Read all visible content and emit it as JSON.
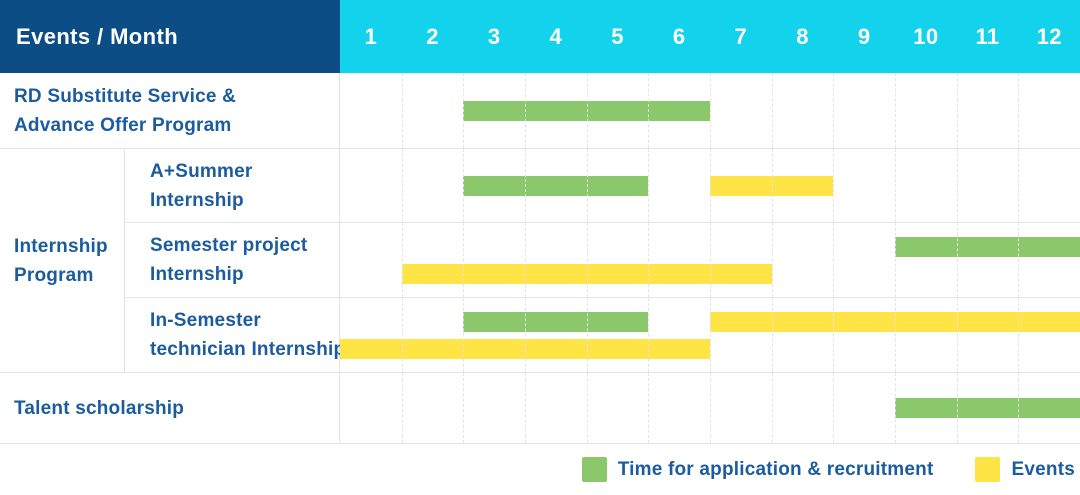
{
  "header": {
    "label": "Events / Month"
  },
  "colors": {
    "header_bg": "#0d4d85",
    "months_bg": "#12d2ec",
    "text_blue": "#1b5c9e",
    "green": "#8bc76b",
    "yellow": "#ffe445",
    "grid_line": "#e3e3e3"
  },
  "group": {
    "label_lines": [
      "Internship",
      "Program"
    ]
  },
  "chart_data": {
    "type": "bar",
    "subtype": "gantt-timeline",
    "title": "Events / Month",
    "x_label": "Month",
    "x_ticks": [
      "1",
      "2",
      "3",
      "4",
      "5",
      "6",
      "7",
      "8",
      "9",
      "10",
      "11",
      "12"
    ],
    "bar_scale_note": "A bar spans from the start of month 'from' to the start of month 'to'; months covered = from .. to-1.",
    "legend": [
      {
        "color": "green",
        "label": "Time for application & recruitment"
      },
      {
        "color": "yellow",
        "label": "Events"
      }
    ],
    "tasks": [
      {
        "name": "RD Substitute Service & Advance Offer Program",
        "group": null,
        "label_lines": [
          "RD Substitute Service &",
          "Advance Offer Program"
        ],
        "tracks": [
          [
            {
              "color": "green",
              "from": 3,
              "to": 7,
              "months_covered": "3-6"
            }
          ]
        ]
      },
      {
        "name": "A+Summer Internship",
        "group": "Internship Program",
        "label_lines": [
          "A+Summer",
          "Internship"
        ],
        "tracks": [
          [
            {
              "color": "green",
              "from": 3,
              "to": 6,
              "months_covered": "3-5"
            },
            {
              "color": "yellow",
              "from": 7,
              "to": 9,
              "months_covered": "7-8"
            }
          ]
        ]
      },
      {
        "name": "Semester project Internship",
        "group": "Internship Program",
        "label_lines": [
          "Semester project",
          "Internship"
        ],
        "tracks": [
          [
            {
              "color": "green",
              "from": 10,
              "to": 13,
              "months_covered": "10-12"
            }
          ],
          [
            {
              "color": "yellow",
              "from": 2,
              "to": 8,
              "months_covered": "2-7"
            }
          ]
        ]
      },
      {
        "name": "In-Semester technician Internship",
        "group": "Internship Program",
        "label_lines": [
          "In-Semester",
          "technician Internship"
        ],
        "tracks": [
          [
            {
              "color": "green",
              "from": 3,
              "to": 6,
              "months_covered": "3-5"
            },
            {
              "color": "yellow",
              "from": 7,
              "to": 13,
              "months_covered": "7-12"
            }
          ],
          [
            {
              "color": "yellow",
              "from": 1,
              "to": 7,
              "months_covered": "1-6"
            }
          ]
        ]
      },
      {
        "name": "Talent scholarship",
        "group": null,
        "label_lines": [
          "Talent scholarship"
        ],
        "tracks": [
          [
            {
              "color": "green",
              "from": 10,
              "to": 13,
              "months_covered": "10-12"
            }
          ]
        ]
      }
    ]
  }
}
